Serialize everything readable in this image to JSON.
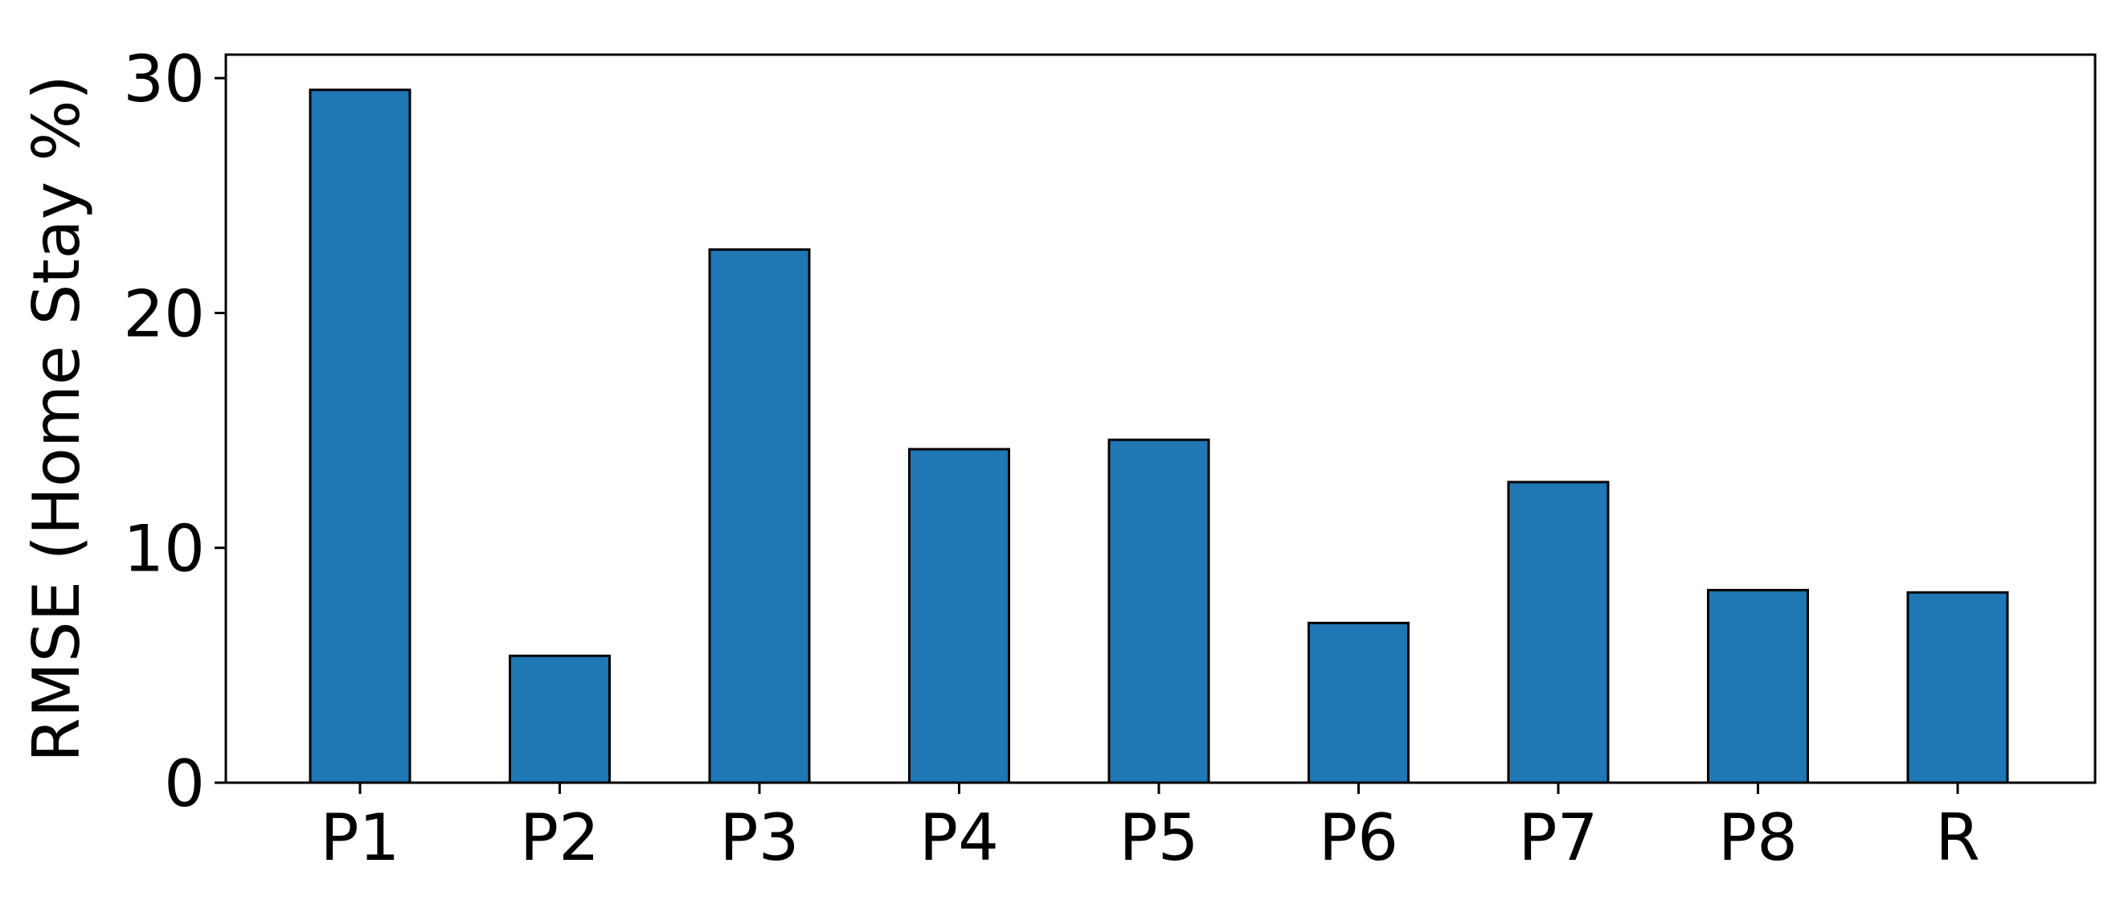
{
  "chart_data": {
    "type": "bar",
    "title": "",
    "xlabel": "",
    "ylabel": "RMSE (Home Stay %)",
    "categories": [
      "P1",
      "P2",
      "P3",
      "P4",
      "P5",
      "P6",
      "P7",
      "P8",
      "R"
    ],
    "values": [
      29.5,
      5.4,
      22.7,
      14.2,
      14.6,
      6.8,
      12.8,
      8.2,
      8.1
    ],
    "ylim": [
      0,
      31
    ],
    "yticks": [
      0,
      10,
      20,
      30
    ],
    "grid": false,
    "legend": "none",
    "bar_color": "#1f77b4",
    "edge_color": "#000000"
  }
}
